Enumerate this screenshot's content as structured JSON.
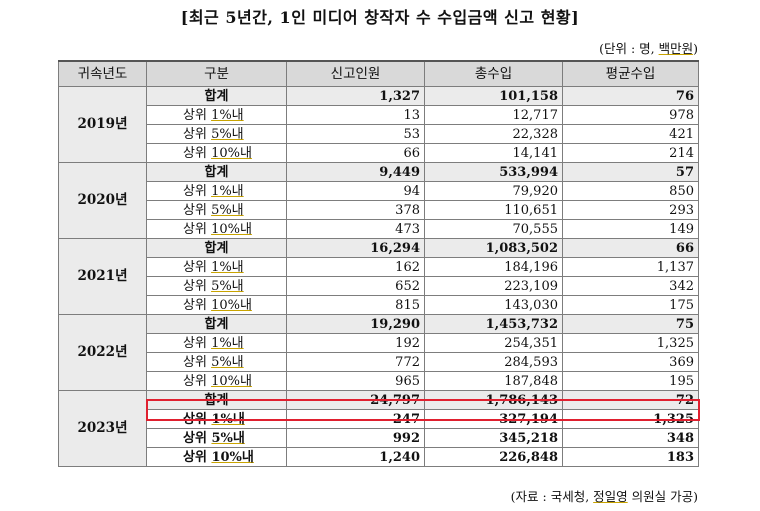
{
  "title": "[최근 5년간, 1인 미디어 창작자 수 수입금액 신고 현황]",
  "unit_note": {
    "prefix": "(단위 : 명, ",
    "underlined": "백만원",
    "suffix": ")"
  },
  "headers": [
    "귀속년도",
    "구분",
    "신고인원",
    "총수입",
    "평균수입"
  ],
  "labels": {
    "total": "합계",
    "sub_prefix": "상위 ",
    "top1": "1%내",
    "top5": "5%내",
    "top10": "10%내"
  },
  "years": [
    {
      "year": "2019년",
      "rows": [
        [
          "1,327",
          "101,158",
          "76"
        ],
        [
          "13",
          "12,717",
          "978"
        ],
        [
          "53",
          "22,328",
          "421"
        ],
        [
          "66",
          "14,141",
          "214"
        ]
      ]
    },
    {
      "year": "2020년",
      "rows": [
        [
          "9,449",
          "533,994",
          "57"
        ],
        [
          "94",
          "79,920",
          "850"
        ],
        [
          "378",
          "110,651",
          "293"
        ],
        [
          "473",
          "70,555",
          "149"
        ]
      ]
    },
    {
      "year": "2021년",
      "rows": [
        [
          "16,294",
          "1,083,502",
          "66"
        ],
        [
          "162",
          "184,196",
          "1,137"
        ],
        [
          "652",
          "223,109",
          "342"
        ],
        [
          "815",
          "143,030",
          "175"
        ]
      ]
    },
    {
      "year": "2022년",
      "rows": [
        [
          "19,290",
          "1,453,732",
          "75"
        ],
        [
          "192",
          "254,351",
          "1,325"
        ],
        [
          "772",
          "284,593",
          "369"
        ],
        [
          "965",
          "187,848",
          "195"
        ]
      ]
    },
    {
      "year": "2023년",
      "rows": [
        [
          "24,797",
          "1,786,143",
          "72"
        ],
        [
          "247",
          "327,194",
          "1,325"
        ],
        [
          "992",
          "345,218",
          "348"
        ],
        [
          "1,240",
          "226,848",
          "183"
        ]
      ]
    }
  ],
  "source": {
    "prefix": "(자료 : 국세청, ",
    "underlined": "정일영",
    "suffix": " 의원실 가공)"
  },
  "highlight_color": "#e0202f"
}
